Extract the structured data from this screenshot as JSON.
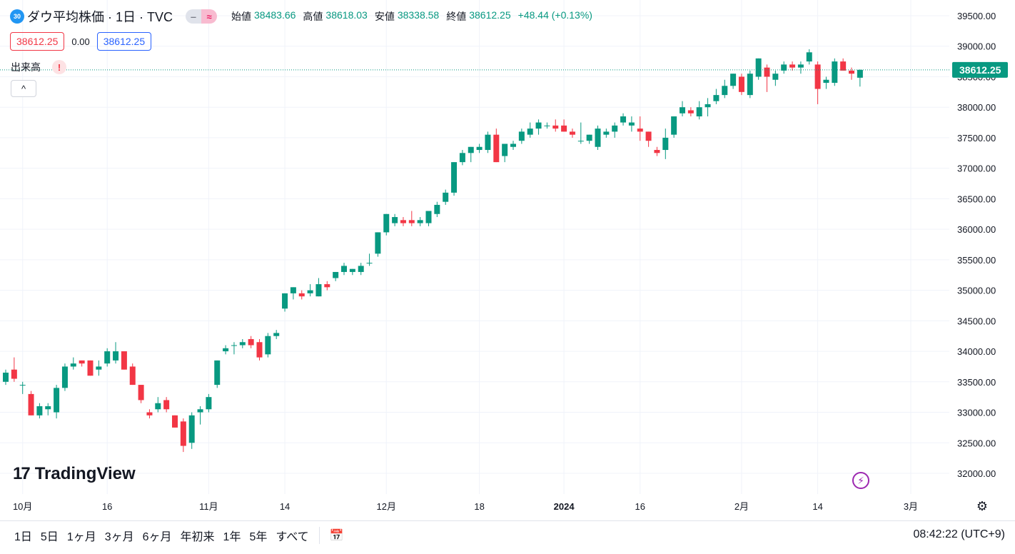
{
  "header": {
    "symbol_badge": "30",
    "title": "ダウ平均株価 · 1日 · TVC",
    "mode_buttons": [
      "‒",
      "≈"
    ],
    "ohlc": [
      {
        "label": "始値",
        "value": "38483.66"
      },
      {
        "label": "高値",
        "value": "38618.03"
      },
      {
        "label": "安値",
        "value": "38338.58"
      },
      {
        "label": "終値",
        "value": "38612.25"
      }
    ],
    "change": "+48.44 (+0.13%)",
    "bid": "38612.25",
    "spread": "0.00",
    "ask": "38612.25",
    "volume_label": "出来高",
    "warn_glyph": "!",
    "collapse_glyph": "^"
  },
  "logo": {
    "mark": "17",
    "text": "TradingView"
  },
  "toolbar": {
    "ranges": [
      "1日",
      "5日",
      "1ヶ月",
      "3ヶ月",
      "6ヶ月",
      "年初来",
      "1年",
      "5年",
      "すべて"
    ],
    "clock": "08:42:22 (UTC+9)"
  },
  "colors": {
    "up": "#089981",
    "down": "#f23645",
    "grid": "#f0f3fa",
    "price_line": "#089981"
  },
  "chart_data": {
    "type": "candlestick",
    "ylim": [
      31700,
      39650
    ],
    "ytick_values": [
      32000,
      32500,
      33000,
      33500,
      34000,
      34500,
      35000,
      35500,
      36000,
      36500,
      37000,
      37500,
      38000,
      38500,
      39000,
      39500
    ],
    "ytick_labels": [
      "32000.00",
      "32500.00",
      "33000.00",
      "33500.00",
      "34000.00",
      "34500.00",
      "35000.00",
      "35500.00",
      "36000.00",
      "36500.00",
      "37000.00",
      "37500.00",
      "38000.00",
      "38500.00",
      "39000.00",
      "39500.00"
    ],
    "xticks": [
      {
        "label": "10月",
        "index": 2,
        "bold": false
      },
      {
        "label": "16",
        "index": 12,
        "bold": false
      },
      {
        "label": "11月",
        "index": 24,
        "bold": false
      },
      {
        "label": "14",
        "index": 33,
        "bold": false
      },
      {
        "label": "12月",
        "index": 45,
        "bold": false
      },
      {
        "label": "18",
        "index": 56,
        "bold": false
      },
      {
        "label": "2024",
        "index": 66,
        "bold": true
      },
      {
        "label": "16",
        "index": 75,
        "bold": false
      },
      {
        "label": "2月",
        "index": 87,
        "bold": false
      },
      {
        "label": "14",
        "index": 96,
        "bold": false
      },
      {
        "label": "3月",
        "index": 107,
        "bold": false
      }
    ],
    "last_price": 38612.25,
    "last_price_label": "38612.25",
    "candles": [
      [
        33500,
        33700,
        33450,
        33650
      ],
      [
        33700,
        33900,
        33500,
        33550
      ],
      [
        33450,
        33500,
        33300,
        33450
      ],
      [
        33300,
        33350,
        32950,
        32950
      ],
      [
        32950,
        33150,
        32900,
        33100
      ],
      [
        33050,
        33150,
        32950,
        33100
      ],
      [
        33000,
        33450,
        32900,
        33400
      ],
      [
        33400,
        33800,
        33350,
        33750
      ],
      [
        33750,
        33900,
        33700,
        33800
      ],
      [
        33850,
        33850,
        33750,
        33800
      ],
      [
        33850,
        33850,
        33600,
        33600
      ],
      [
        33700,
        33850,
        33600,
        33750
      ],
      [
        33800,
        34050,
        33750,
        34000
      ],
      [
        33850,
        34150,
        33800,
        34000
      ],
      [
        34000,
        34000,
        33700,
        33700
      ],
      [
        33750,
        33800,
        33450,
        33450
      ],
      [
        33450,
        33450,
        33150,
        33200
      ],
      [
        33000,
        33050,
        32900,
        32950
      ],
      [
        33050,
        33250,
        33000,
        33150
      ],
      [
        33200,
        33250,
        33000,
        33050
      ],
      [
        32950,
        32950,
        32750,
        32750
      ],
      [
        32850,
        32900,
        32350,
        32450
      ],
      [
        32500,
        33000,
        32400,
        32950
      ],
      [
        33000,
        33100,
        32800,
        33050
      ],
      [
        33050,
        33300,
        33000,
        33250
      ],
      [
        33450,
        33850,
        33400,
        33850
      ],
      [
        34000,
        34100,
        33950,
        34050
      ],
      [
        34100,
        34150,
        33950,
        34100
      ],
      [
        34100,
        34200,
        34050,
        34150
      ],
      [
        34200,
        34250,
        34050,
        34100
      ],
      [
        34150,
        34200,
        33850,
        33900
      ],
      [
        33950,
        34300,
        33900,
        34250
      ],
      [
        34250,
        34350,
        34200,
        34300
      ],
      [
        34700,
        34950,
        34650,
        34950
      ],
      [
        34950,
        35050,
        34850,
        35050
      ],
      [
        34950,
        35000,
        34850,
        34900
      ],
      [
        34950,
        35100,
        34900,
        35000
      ],
      [
        34900,
        35200,
        34900,
        35100
      ],
      [
        35100,
        35150,
        35000,
        35050
      ],
      [
        35200,
        35300,
        35150,
        35300
      ],
      [
        35300,
        35450,
        35250,
        35400
      ],
      [
        35300,
        35350,
        35250,
        35350
      ],
      [
        35300,
        35450,
        35250,
        35400
      ],
      [
        35450,
        35600,
        35400,
        35450
      ],
      [
        35600,
        35950,
        35550,
        35950
      ],
      [
        35950,
        36250,
        35900,
        36250
      ],
      [
        36100,
        36250,
        36050,
        36200
      ],
      [
        36150,
        36200,
        36050,
        36100
      ],
      [
        36150,
        36300,
        36050,
        36100
      ],
      [
        36100,
        36200,
        36050,
        36150
      ],
      [
        36100,
        36300,
        36050,
        36300
      ],
      [
        36250,
        36450,
        36200,
        36400
      ],
      [
        36450,
        36650,
        36400,
        36600
      ],
      [
        36600,
        37100,
        36550,
        37100
      ],
      [
        37100,
        37300,
        37050,
        37250
      ],
      [
        37250,
        37350,
        37100,
        37350
      ],
      [
        37300,
        37400,
        37250,
        37350
      ],
      [
        37300,
        37600,
        37250,
        37550
      ],
      [
        37550,
        37650,
        37100,
        37100
      ],
      [
        37200,
        37400,
        37100,
        37400
      ],
      [
        37350,
        37450,
        37300,
        37400
      ],
      [
        37450,
        37650,
        37400,
        37600
      ],
      [
        37550,
        37750,
        37500,
        37650
      ],
      [
        37650,
        37800,
        37550,
        37750
      ],
      [
        37700,
        37750,
        37650,
        37700
      ],
      [
        37700,
        37800,
        37600,
        37650
      ],
      [
        37700,
        37800,
        37600,
        37600
      ],
      [
        37600,
        37650,
        37500,
        37550
      ],
      [
        37450,
        37750,
        37400,
        37450
      ],
      [
        37450,
        37550,
        37400,
        37550
      ],
      [
        37350,
        37700,
        37300,
        37650
      ],
      [
        37550,
        37650,
        37500,
        37600
      ],
      [
        37600,
        37750,
        37500,
        37700
      ],
      [
        37750,
        37900,
        37700,
        37850
      ],
      [
        37700,
        37850,
        37600,
        37750
      ],
      [
        37650,
        37850,
        37450,
        37600
      ],
      [
        37600,
        37600,
        37350,
        37450
      ],
      [
        37300,
        37350,
        37200,
        37250
      ],
      [
        37300,
        37650,
        37150,
        37500
      ],
      [
        37550,
        37850,
        37500,
        37850
      ],
      [
        37900,
        38100,
        37850,
        38000
      ],
      [
        37950,
        38000,
        37850,
        37900
      ],
      [
        37850,
        38100,
        37800,
        38000
      ],
      [
        38000,
        38150,
        37850,
        38050
      ],
      [
        38100,
        38300,
        38050,
        38200
      ],
      [
        38200,
        38450,
        38150,
        38350
      ],
      [
        38350,
        38550,
        38300,
        38550
      ],
      [
        38500,
        38550,
        38200,
        38250
      ],
      [
        38200,
        38600,
        38150,
        38550
      ],
      [
        38500,
        38800,
        38450,
        38800
      ],
      [
        38650,
        38700,
        38250,
        38500
      ],
      [
        38450,
        38600,
        38350,
        38550
      ],
      [
        38600,
        38750,
        38550,
        38700
      ],
      [
        38700,
        38750,
        38600,
        38650
      ],
      [
        38650,
        38750,
        38550,
        38700
      ],
      [
        38750,
        38950,
        38700,
        38900
      ],
      [
        38700,
        38750,
        38050,
        38300
      ],
      [
        38400,
        38500,
        38300,
        38450
      ],
      [
        38400,
        38800,
        38350,
        38750
      ],
      [
        38750,
        38800,
        38600,
        38600
      ],
      [
        38600,
        38650,
        38450,
        38550
      ],
      [
        38483.66,
        38618.03,
        38338.58,
        38612.25
      ]
    ]
  }
}
